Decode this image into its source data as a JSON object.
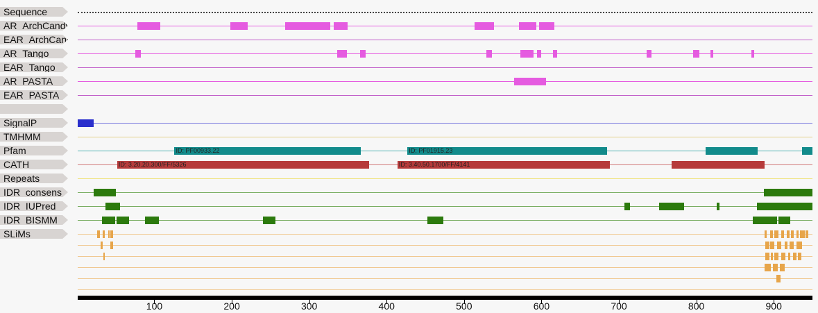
{
  "tracks": [
    {
      "label": "Sequence",
      "style": "dotted",
      "color": "#444444"
    },
    {
      "label": "AR_ArchCandy",
      "color": "#e55be0",
      "segments": [
        [
          78,
          108
        ],
        [
          198,
          221
        ],
        [
          269,
          327
        ],
        [
          332,
          350
        ],
        [
          514,
          539
        ],
        [
          571,
          593
        ],
        [
          597,
          617
        ]
      ]
    },
    {
      "label": "EAR_ArchCandy",
      "color": "#c15ec9",
      "segments": []
    },
    {
      "label": "AR_Tango",
      "color": "#e55be0",
      "segments": [
        [
          75,
          83
        ],
        [
          336,
          349
        ],
        [
          366,
          373
        ],
        [
          529,
          536
        ],
        [
          573,
          590
        ],
        [
          594,
          600
        ],
        [
          615,
          620
        ],
        [
          736,
          742
        ],
        [
          796,
          804
        ],
        [
          818,
          822
        ],
        [
          871,
          875
        ]
      ]
    },
    {
      "label": "EAR_Tango",
      "color": "#c15ec9",
      "segments": []
    },
    {
      "label": "AR_PASTA",
      "color": "#e55be0",
      "segments": [
        [
          565,
          606
        ]
      ]
    },
    {
      "label": "EAR_PASTA",
      "color": "#c15ec9",
      "segments": []
    },
    {
      "label": "",
      "color": null,
      "segments": []
    },
    {
      "label": "SignalP",
      "color": "#2a2fcc",
      "line": "#7777dd",
      "segments": [
        [
          1,
          22
        ]
      ]
    },
    {
      "label": "TMHMM",
      "color": "#d4b84a",
      "line": "#e3d08a",
      "segments": []
    },
    {
      "label": "Pfam",
      "color": "#128b8b",
      "line": "#4fb1b1",
      "segments": [
        [
          126,
          367,
          "ID: PF00933.22"
        ],
        [
          427,
          685,
          "ID: PF01915.23"
        ],
        [
          812,
          879,
          ""
        ],
        [
          937,
          950,
          ""
        ]
      ]
    },
    {
      "label": "CATH",
      "color": "#b63b3b",
      "line": "#d07a7a",
      "segments": [
        [
          52,
          377,
          "ID: 3.20.20.300/FF/5326"
        ],
        [
          414,
          688,
          "ID: 3.40.50.1700/FF/4141"
        ],
        [
          768,
          888,
          ""
        ]
      ]
    },
    {
      "label": "Repeats",
      "color": "#e6d26a",
      "line": "#f0e27a",
      "segments": []
    },
    {
      "label": "IDR_consens",
      "color": "#2c7a0d",
      "line": "#79ae62",
      "segments": [
        [
          22,
          50
        ],
        [
          887,
          950
        ]
      ]
    },
    {
      "label": "IDR_IUPred",
      "color": "#2c7a0d",
      "line": "#79ae62",
      "segments": [
        [
          37,
          56
        ],
        [
          707,
          714
        ],
        [
          752,
          784
        ],
        [
          826,
          830
        ],
        [
          878,
          950
        ]
      ]
    },
    {
      "label": "IDR_BISMM",
      "color": "#2c7a0d",
      "line": "#79ae62",
      "segments": [
        [
          32,
          49
        ],
        [
          51,
          67
        ],
        [
          88,
          106
        ],
        [
          240,
          256
        ],
        [
          453,
          473
        ],
        [
          873,
          904
        ],
        [
          906,
          921
        ]
      ]
    },
    {
      "label": "SLiMs",
      "color": "#e7a54a",
      "line": "#f0c890",
      "segments": []
    }
  ],
  "slims_rows": [
    [
      [
        26,
        30
      ],
      [
        33,
        36
      ],
      [
        40,
        42
      ],
      [
        43,
        47
      ],
      [
        888,
        891
      ],
      [
        895,
        899
      ],
      [
        901,
        906
      ],
      [
        910,
        913
      ],
      [
        917,
        920
      ],
      [
        922,
        926
      ],
      [
        929,
        932
      ],
      [
        934,
        940
      ],
      [
        941,
        945
      ]
    ],
    [
      [
        31,
        33
      ],
      [
        43,
        47
      ],
      [
        889,
        894
      ],
      [
        895,
        901
      ],
      [
        904,
        910
      ],
      [
        914,
        918
      ],
      [
        920,
        926
      ],
      [
        929,
        937
      ]
    ],
    [
      [
        34,
        36
      ],
      [
        889,
        894
      ],
      [
        896,
        899
      ],
      [
        901,
        906
      ],
      [
        910,
        915
      ],
      [
        919,
        921
      ],
      [
        925,
        929
      ],
      [
        931,
        936
      ]
    ],
    [
      [
        888,
        896
      ],
      [
        899,
        905
      ],
      [
        908,
        914
      ]
    ],
    [
      [
        903,
        909
      ]
    ]
  ],
  "axis": {
    "min": 1,
    "max": 950,
    "ticks": [
      "100",
      "200",
      "300",
      "400",
      "500",
      "600",
      "700",
      "800",
      "900"
    ]
  }
}
